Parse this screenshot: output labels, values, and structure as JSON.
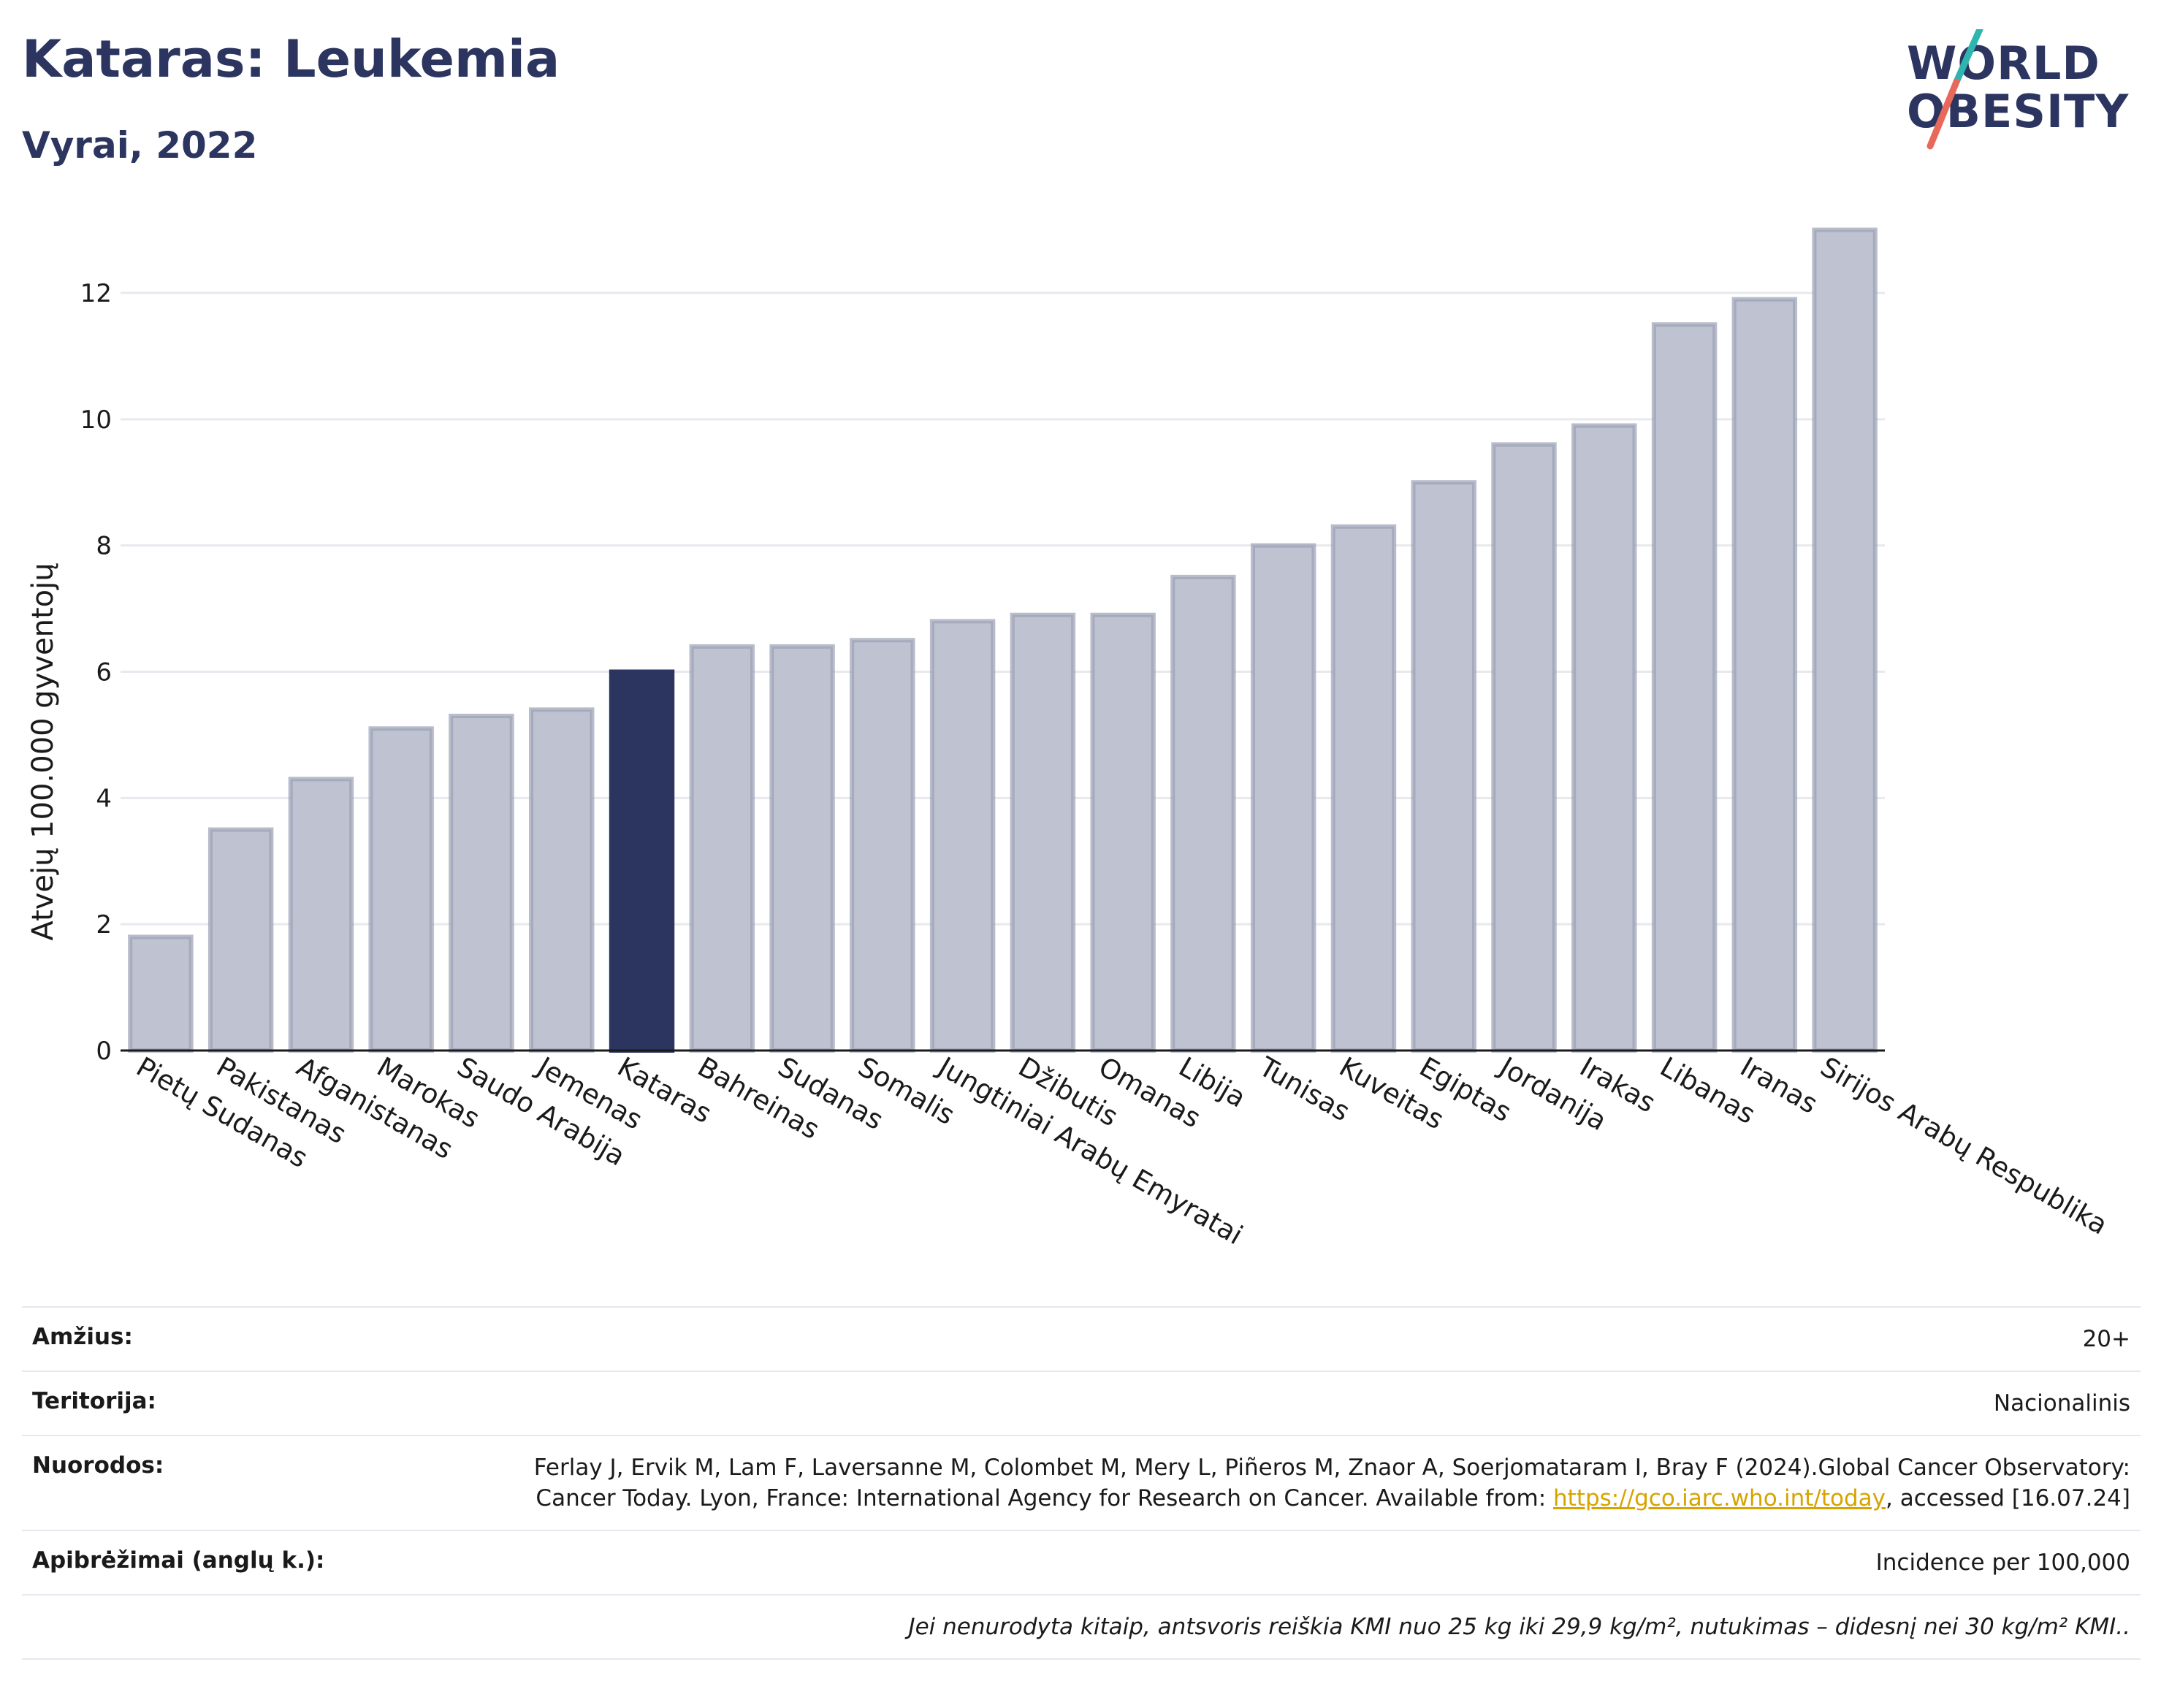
{
  "header": {
    "title": "Kataras: Leukemia",
    "subtitle": "Vyrai, 2022"
  },
  "logo": {
    "line1": "WORLD",
    "line2": "OBESITY"
  },
  "colors": {
    "bar_default": "#bfc2d0",
    "bar_default_stroke": "#9a9fb5",
    "bar_highlight": "#2b3560",
    "grid": "#e8e9ef",
    "title": "#2b3560",
    "link": "#d6a400",
    "logo_teal": "#2fb5b0",
    "logo_coral": "#e8695b"
  },
  "chart_data": {
    "type": "bar",
    "title": "Kataras: Leukemia",
    "subtitle": "Vyrai, 2022",
    "xlabel": "",
    "ylabel": "Atvejų 100.000 gyventojų",
    "ylim": [
      0,
      13.4
    ],
    "yticks": [
      0,
      2,
      4,
      6,
      8,
      10,
      12
    ],
    "grid": true,
    "highlight": "Kataras",
    "categories": [
      "Pietų Sudanas",
      "Pakistanas",
      "Afganistanas",
      "Marokas",
      "Saudo Arabija",
      "Jemenas",
      "Kataras",
      "Bahreinas",
      "Sudanas",
      "Somalis",
      "Jungtiniai Arabų Emyratai",
      "Džibutis",
      "Omanas",
      "Libija",
      "Tunisas",
      "Kuveitas",
      "Egiptas",
      "Jordanija",
      "Irakas",
      "Libanas",
      "Iranas",
      "Sirijos Arabų Respublika"
    ],
    "values": [
      1.8,
      3.5,
      4.3,
      5.1,
      5.3,
      5.4,
      6.0,
      6.4,
      6.4,
      6.5,
      6.8,
      6.9,
      6.9,
      7.5,
      8.0,
      8.3,
      9.0,
      9.6,
      9.9,
      11.5,
      11.9,
      13.0
    ]
  },
  "meta": {
    "age_label": "Amžius:",
    "age_value": "20+",
    "territory_label": "Teritorija:",
    "territory_value": "Nacionalinis",
    "refs_label": "Nuorodos:",
    "refs_text_1": "Ferlay J, Ervik M, Lam F, Laversanne M, Colombet M, Mery L, Piñeros M, Znaor A, Soerjomataram I, Bray F (2024).Global Cancer Observatory: Cancer Today. Lyon, France: International Agency for Research on Cancer. Available from: ",
    "refs_link": "https://gco.iarc.who.int/today",
    "refs_text_2": ", accessed [16.07.24]",
    "definitions_label": "Apibrėžimai (anglų k.):",
    "definitions_value": "Incidence per 100,000",
    "note": "Jei nenurodyta kitaip, antsvoris reiškia KMI nuo 25 kg iki 29,9 kg/m², nutukimas – didesnį nei 30 kg/m² KMI.."
  }
}
